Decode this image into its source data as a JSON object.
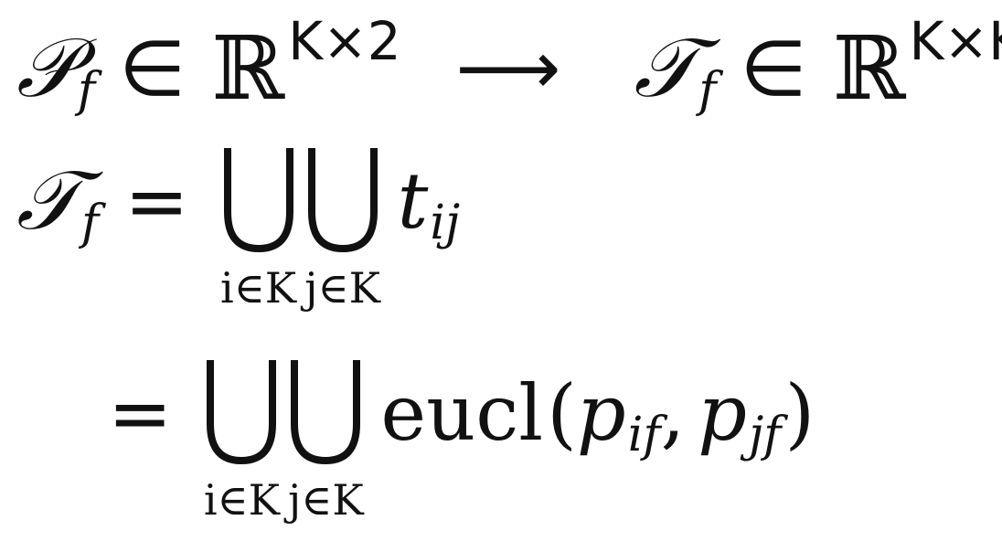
{
  "line1": {
    "lhs_symbol": "𝒫",
    "lhs_sub": "f",
    "in": "∈",
    "space": "ℝ",
    "lhs_exp": "K×2",
    "arrow": "⟶",
    "rhs_symbol": "𝒯",
    "rhs_sub": "f",
    "rhs_in": "∈",
    "rhs_space": "ℝ",
    "rhs_exp": "K×K"
  },
  "line2": {
    "lhs_symbol": "𝒯",
    "lhs_sub": "f",
    "equals": "=",
    "cup1_limit": "i∈K",
    "cup2_limit": "j∈K",
    "term": "t",
    "term_sub": "ij"
  },
  "line3": {
    "equals": "=",
    "cup1_limit": "i∈K",
    "cup2_limit": "j∈K",
    "func": "eucl",
    "open": "(",
    "arg1": "p",
    "arg1_sub": "if",
    "comma": ",",
    "arg2": "p",
    "arg2_sub": "jf",
    "close": ")"
  }
}
